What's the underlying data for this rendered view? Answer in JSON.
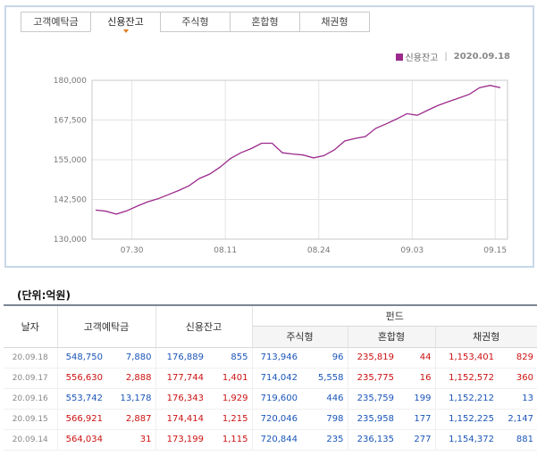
{
  "tabs": [
    "고객예탁금",
    "신용잔고",
    "주식형",
    "혼합형",
    "채권형"
  ],
  "active_tab": 1,
  "legend": {
    "label": "신용잔고",
    "separator": "|",
    "date": "2020.09.18",
    "color": "#9b2a8c"
  },
  "chart_data": {
    "type": "line",
    "title": "",
    "series": [
      {
        "name": "신용잔고",
        "color": "#9b2a8c",
        "values": [
          139150,
          138800,
          137900,
          138900,
          140400,
          141700,
          142700,
          144000,
          145300,
          146800,
          149100,
          150500,
          152700,
          155400,
          157200,
          158500,
          160200,
          160200,
          157200,
          156800,
          156500,
          155600,
          156300,
          158100,
          160900,
          161700,
          162300,
          164900,
          166300,
          167800,
          169500,
          169000,
          170600,
          172100,
          173300,
          174400,
          175600,
          177700,
          178400,
          177700
        ]
      }
    ],
    "x_ticks": [
      {
        "index": 3.5,
        "label": "07.30"
      },
      {
        "index": 12.5,
        "label": "08.11"
      },
      {
        "index": 21.5,
        "label": "08.24"
      },
      {
        "index": 30.5,
        "label": "09.03"
      },
      {
        "index": 38.5,
        "label": "09.15"
      }
    ],
    "y_ticks": [
      130000,
      142500,
      155000,
      167500,
      180000
    ],
    "y_tick_labels": [
      "130,000",
      "142,500",
      "155,000",
      "167,500",
      "180,000"
    ],
    "ylim": [
      130000,
      180000
    ]
  },
  "unit_label": "(단위:억원)",
  "table": {
    "headers": {
      "date": "날자",
      "deposit": "고객예탁금",
      "credit": "신용잔고",
      "fund": "펀드",
      "equity": "주식형",
      "mixed": "혼합형",
      "bond": "채권형"
    },
    "rows": [
      {
        "date": "20.09.18",
        "cells": [
          [
            "548,750",
            "down"
          ],
          [
            "7,880",
            "down"
          ],
          [
            "176,889",
            "down"
          ],
          [
            "855",
            "down"
          ],
          [
            "713,946",
            "down"
          ],
          [
            "96",
            "down"
          ],
          [
            "235,819",
            "up"
          ],
          [
            "44",
            "up"
          ],
          [
            "1,153,401",
            "up"
          ],
          [
            "829",
            "up"
          ]
        ]
      },
      {
        "date": "20.09.17",
        "cells": [
          [
            "556,630",
            "up"
          ],
          [
            "2,888",
            "up"
          ],
          [
            "177,744",
            "up"
          ],
          [
            "1,401",
            "up"
          ],
          [
            "714,042",
            "down"
          ],
          [
            "5,558",
            "down"
          ],
          [
            "235,775",
            "up"
          ],
          [
            "16",
            "up"
          ],
          [
            "1,152,572",
            "up"
          ],
          [
            "360",
            "up"
          ]
        ]
      },
      {
        "date": "20.09.16",
        "cells": [
          [
            "553,742",
            "down"
          ],
          [
            "13,178",
            "down"
          ],
          [
            "176,343",
            "up"
          ],
          [
            "1,929",
            "up"
          ],
          [
            "719,600",
            "down"
          ],
          [
            "446",
            "down"
          ],
          [
            "235,759",
            "down"
          ],
          [
            "199",
            "down"
          ],
          [
            "1,152,212",
            "down"
          ],
          [
            "13",
            "down"
          ]
        ]
      },
      {
        "date": "20.09.15",
        "cells": [
          [
            "566,921",
            "up"
          ],
          [
            "2,887",
            "up"
          ],
          [
            "174,414",
            "up"
          ],
          [
            "1,215",
            "up"
          ],
          [
            "720,046",
            "down"
          ],
          [
            "798",
            "down"
          ],
          [
            "235,958",
            "down"
          ],
          [
            "177",
            "down"
          ],
          [
            "1,152,225",
            "down"
          ],
          [
            "2,147",
            "down"
          ]
        ]
      },
      {
        "date": "20.09.14",
        "cells": [
          [
            "564,034",
            "up"
          ],
          [
            "31",
            "up"
          ],
          [
            "173,199",
            "up"
          ],
          [
            "1,115",
            "up"
          ],
          [
            "720,844",
            "down"
          ],
          [
            "235",
            "down"
          ],
          [
            "236,135",
            "down"
          ],
          [
            "277",
            "down"
          ],
          [
            "1,154,372",
            "down"
          ],
          [
            "881",
            "down"
          ]
        ]
      }
    ]
  }
}
